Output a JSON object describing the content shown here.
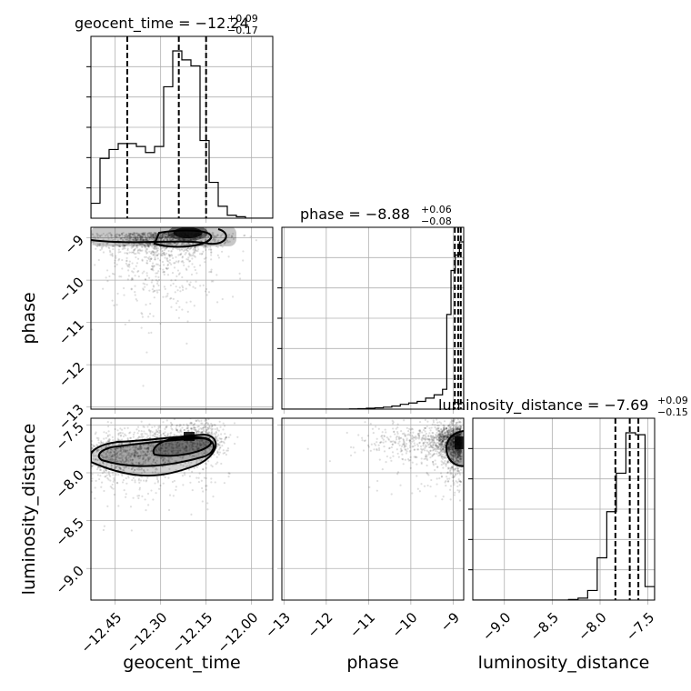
{
  "chart_data": {
    "type": "corner",
    "parameters": [
      {
        "name": "geocent_time",
        "title_main": "geocent_time = −12.24",
        "err_plus": "+0.09",
        "err_minus": "−0.17",
        "axis_label": "geocent_time",
        "range": [
          -12.53,
          -11.93
        ],
        "ticks": [
          -12.45,
          -12.3,
          -12.15,
          -12.0
        ],
        "tick_labels": [
          "−12.45",
          "−12.30",
          "−12.15",
          "−12.00"
        ],
        "quantiles": [
          -12.41,
          -12.24,
          -12.15
        ],
        "hist_edges": [
          -12.53,
          -12.5,
          -12.47,
          -12.44,
          -12.41,
          -12.38,
          -12.35,
          -12.32,
          -12.29,
          -12.26,
          -12.23,
          -12.2,
          -12.17,
          -12.14,
          -12.11,
          -12.08,
          -12.05,
          -12.02,
          -11.99,
          -11.96,
          -11.93
        ],
        "hist_counts": [
          0.05,
          0.2,
          0.23,
          0.25,
          0.25,
          0.24,
          0.22,
          0.24,
          0.44,
          0.56,
          0.53,
          0.51,
          0.26,
          0.12,
          0.04,
          0.01,
          0.005,
          0,
          0,
          0
        ]
      },
      {
        "name": "phase",
        "title_main": "phase = −8.88",
        "err_plus": "+0.06",
        "err_minus": "−0.08",
        "axis_label": "phase",
        "range": [
          -13.05,
          -8.75
        ],
        "ticks": [
          -13,
          -12,
          -11,
          -10,
          -9
        ],
        "tick_labels": [
          "−13",
          "−12",
          "−11",
          "−10",
          "−9"
        ],
        "quantiles": [
          -8.96,
          -8.88,
          -8.82
        ],
        "hist_edges": [
          -13.05,
          -12.85,
          -12.65,
          -12.45,
          -12.25,
          -12.05,
          -11.85,
          -11.65,
          -11.45,
          -11.25,
          -11.05,
          -10.85,
          -10.65,
          -10.45,
          -10.25,
          -10.05,
          -9.85,
          -9.65,
          -9.45,
          -9.25,
          -9.15,
          -9.05,
          -8.95,
          -8.85,
          -8.75
        ],
        "hist_counts": [
          0,
          0,
          0,
          0,
          0,
          0,
          0,
          0,
          0.001,
          0.002,
          0.004,
          0.006,
          0.009,
          0.014,
          0.022,
          0.028,
          0.035,
          0.05,
          0.065,
          0.09,
          0.43,
          0.63,
          0.7,
          0.76
        ]
      },
      {
        "name": "luminosity_distance",
        "title_main": "luminosity_distance = −7.69",
        "err_plus": "+0.09",
        "err_minus": "−0.15",
        "axis_label": "luminosity_distance",
        "range": [
          -9.33,
          -7.43
        ],
        "ticks": [
          -9.0,
          -8.5,
          -8.0,
          -7.5
        ],
        "tick_labels": [
          "−9.0",
          "−8.5",
          "−8.0",
          "−7.5"
        ],
        "quantiles": [
          -7.84,
          -7.69,
          -7.6
        ],
        "hist_edges": [
          -9.33,
          -9.23,
          -9.13,
          -9.03,
          -8.93,
          -8.83,
          -8.73,
          -8.63,
          -8.53,
          -8.43,
          -8.33,
          -8.23,
          -8.13,
          -8.03,
          -7.93,
          -7.83,
          -7.73,
          -7.63,
          -7.53,
          -7.43
        ],
        "hist_counts": [
          0,
          0,
          0,
          0,
          0,
          0,
          0,
          0,
          0,
          0,
          0.003,
          0.01,
          0.05,
          0.22,
          0.46,
          0.66,
          0.87,
          0.86,
          0.07
        ]
      }
    ],
    "pair_panels": [
      {
        "x_param": "geocent_time",
        "y_param": "phase",
        "y_ticks": [
          -9,
          -10,
          -11,
          -12,
          -13
        ],
        "y_tick_labels": [
          "−9",
          "−10",
          "−11",
          "−12",
          "−13"
        ],
        "density_peak": {
          "x": -12.21,
          "y": -8.88
        }
      },
      {
        "x_param": "geocent_time",
        "y_param": "luminosity_distance",
        "y_ticks": [
          -7.5,
          -8.0,
          -8.5,
          -9.0
        ],
        "y_tick_labels": [
          "−7.5",
          "−8.0",
          "−8.5",
          "−9.0"
        ],
        "density_peak": {
          "x": -12.18,
          "y": -7.64
        }
      },
      {
        "x_param": "phase",
        "y_param": "luminosity_distance",
        "density_peak": {
          "x": -8.8,
          "y": -7.66
        }
      }
    ],
    "grid": true,
    "quantile_style": "dashed"
  }
}
